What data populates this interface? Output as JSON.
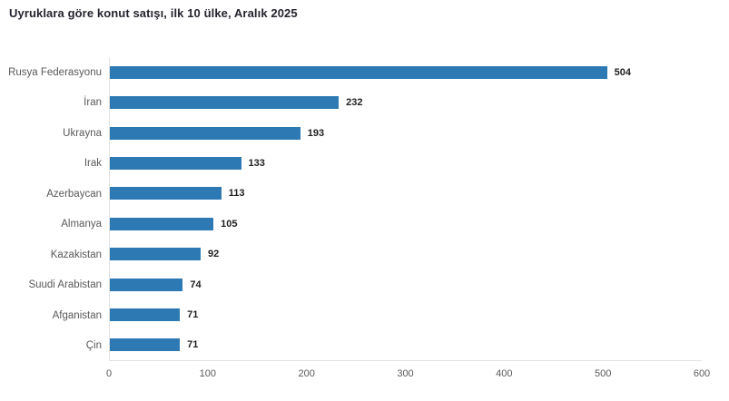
{
  "title": "Uyruklara göre konut satışı, ilk 10 ülke, Aralık 2025",
  "chart_data": {
    "type": "bar",
    "orientation": "horizontal",
    "title": "Uyruklara göre konut satışı, ilk 10 ülke, Aralık 2025",
    "categories": [
      "Rusya Federasyonu",
      "İran",
      "Ukrayna",
      "Irak",
      "Azerbaycan",
      "Almanya",
      "Kazakistan",
      "Suudi Arabistan",
      "Afganistan",
      "Çin"
    ],
    "values": [
      504,
      232,
      193,
      133,
      113,
      105,
      92,
      74,
      71,
      71
    ],
    "xlabel": "",
    "ylabel": "",
    "xlim": [
      0,
      600
    ],
    "xticks": [
      0,
      100,
      200,
      300,
      400,
      500,
      600
    ],
    "grid": false,
    "legend": false,
    "data_labels": true,
    "bar_color": "#2d79b4",
    "axis_line_color": "#e2e2e2",
    "label_color": "#595959",
    "value_label_color": "#1f1f1f"
  }
}
